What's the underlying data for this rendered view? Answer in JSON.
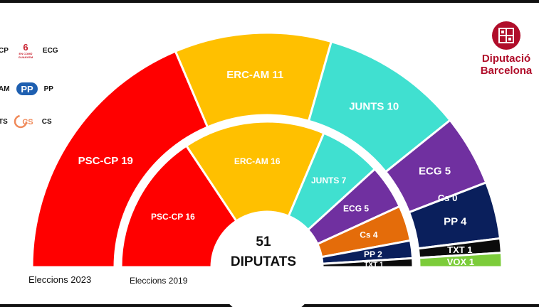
{
  "brand": {
    "line1": "Diputació",
    "line2": "Barcelona"
  },
  "legend": [
    {
      "left": "CP",
      "logo": "ecg-logo",
      "logo_text": "EN COMÚ GUANYEM",
      "right": "ECG"
    },
    {
      "left": "AM",
      "logo": "pp-logo",
      "logo_text": "PP",
      "right": "PP"
    },
    {
      "left": "TS",
      "logo": "cs-logo",
      "logo_text": "CS",
      "right": "CS"
    }
  ],
  "colors": {
    "PSC-CP": "#ff0000",
    "ERC-AM": "#ffc000",
    "JUNTS": "#40e0d0",
    "ECG": "#7030a0",
    "Cs": "#e46c0a",
    "PP": "#0a1f5c",
    "TXT": "#0b0b0b",
    "VOX": "#7ccc3a"
  },
  "chart_data": [
    {
      "type": "pie",
      "title": "Elecciones 2023",
      "label": "Eleccions 2023",
      "series": [
        {
          "name": "PSC-CP",
          "value": 19,
          "label": "PSC-CP 19"
        },
        {
          "name": "ERC-AM",
          "value": 11,
          "label": "ERC-AM 11"
        },
        {
          "name": "JUNTS",
          "value": 10,
          "label": "JUNTS 10"
        },
        {
          "name": "ECG",
          "value": 5,
          "label": "ECG 5"
        },
        {
          "name": "Cs",
          "value": 0,
          "label": "Cs 0"
        },
        {
          "name": "PP",
          "value": 4,
          "label": "PP 4"
        },
        {
          "name": "TXT",
          "value": 1,
          "label": "TXT 1"
        },
        {
          "name": "VOX",
          "value": 1,
          "label": "VOX 1"
        }
      ]
    },
    {
      "type": "pie",
      "title": "Elecciones 2019",
      "label": "Eleccions 2019",
      "series": [
        {
          "name": "PSC-CP",
          "value": 16,
          "label": "PSC-CP 16"
        },
        {
          "name": "ERC-AM",
          "value": 16,
          "label": "ERC-AM 16"
        },
        {
          "name": "JUNTS",
          "value": 7,
          "label": "JUNTS 7"
        },
        {
          "name": "ECG",
          "value": 5,
          "label": "ECG 5"
        },
        {
          "name": "Cs",
          "value": 4,
          "label": "Cs 4"
        },
        {
          "name": "PP",
          "value": 2,
          "label": "PP 2"
        },
        {
          "name": "TXT",
          "value": 1,
          "label": "TXT 1"
        }
      ]
    }
  ],
  "center": {
    "total": "51",
    "unit": "DIPUTATS"
  }
}
